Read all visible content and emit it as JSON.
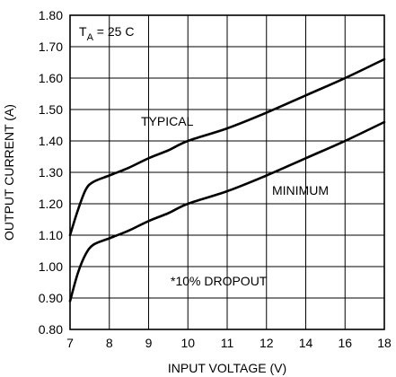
{
  "chart_data": {
    "type": "line",
    "xlabel": "INPUT VOLTAGE (V)",
    "ylabel": "OUTPUT CURRENT (A)",
    "x_ticks": [
      "7",
      "8",
      "9",
      "10",
      "11",
      "12",
      "14",
      "16",
      "18"
    ],
    "y_ticks": [
      "0.80",
      "0.90",
      "1.00",
      "1.10",
      "1.20",
      "1.30",
      "1.40",
      "1.50",
      "1.60",
      "1.70",
      "1.80"
    ],
    "ylim": [
      0.8,
      1.8
    ],
    "grid": true,
    "annotations": {
      "temp_main": "T",
      "temp_sub": "A",
      "temp_rest": " = 25 C",
      "dropout": "*10% DROPOUT"
    },
    "series": [
      {
        "name": "TYPICAL",
        "x": [
          7,
          7.2,
          7.4,
          7.6,
          8,
          8.5,
          9,
          9.5,
          10,
          11,
          12,
          14,
          16,
          18
        ],
        "y": [
          1.1,
          1.18,
          1.245,
          1.27,
          1.29,
          1.315,
          1.345,
          1.37,
          1.4,
          1.44,
          1.49,
          1.545,
          1.6,
          1.66
        ]
      },
      {
        "name": "MINIMUM",
        "x": [
          7,
          7.2,
          7.4,
          7.6,
          8,
          8.5,
          9,
          9.5,
          10,
          11,
          12,
          14,
          16,
          18
        ],
        "y": [
          0.89,
          0.98,
          1.04,
          1.07,
          1.09,
          1.115,
          1.145,
          1.17,
          1.2,
          1.24,
          1.29,
          1.345,
          1.4,
          1.46
        ]
      }
    ]
  }
}
